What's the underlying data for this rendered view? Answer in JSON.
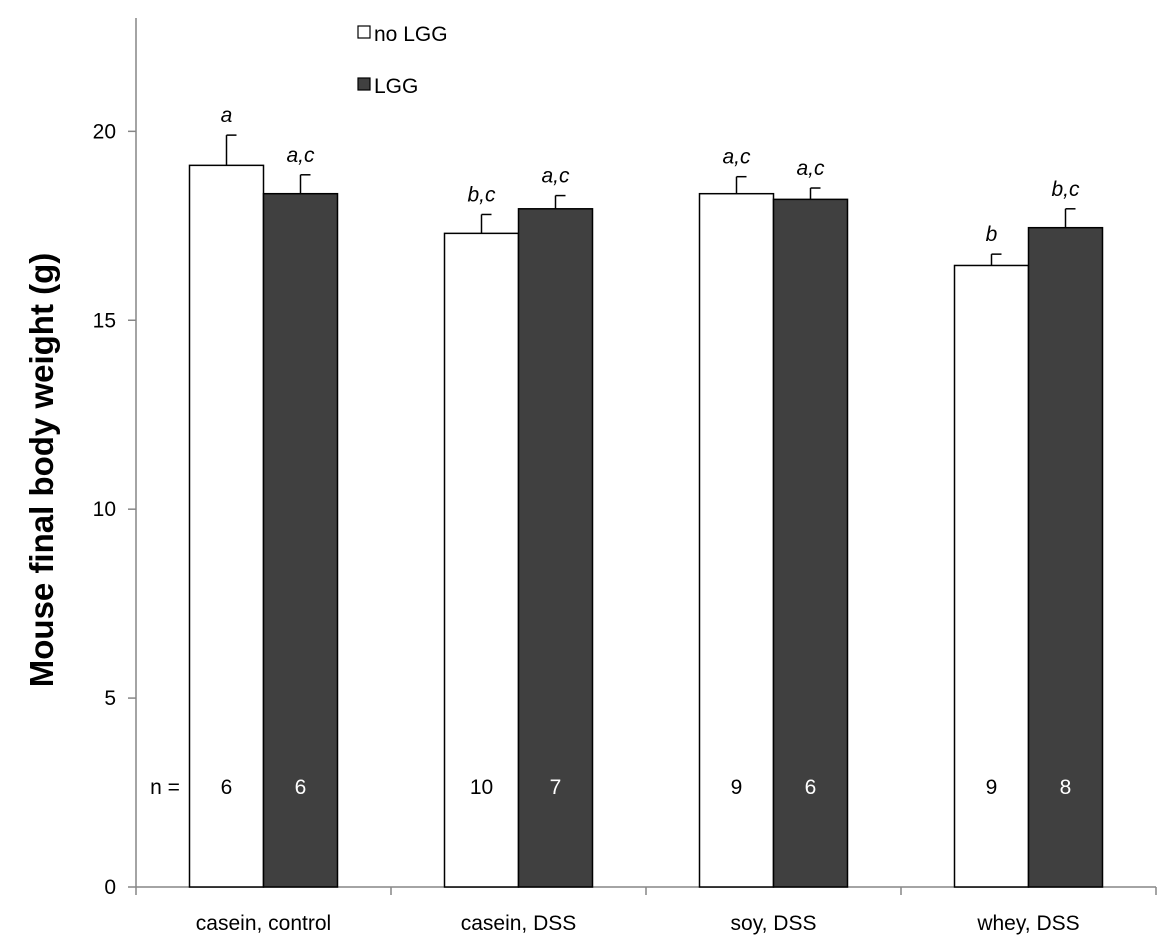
{
  "chart_data": {
    "type": "bar",
    "categories": [
      "casein, control",
      "casein, DSS",
      "soy, DSS",
      "whey, DSS"
    ],
    "ylabel": "Mouse final body weight (g)",
    "ylim": [
      0,
      23
    ],
    "yticks": [
      0,
      5,
      10,
      15,
      20
    ],
    "series": [
      {
        "name": "no LGG",
        "color": "#ffffff",
        "values": [
          19.1,
          17.3,
          18.35,
          16.45
        ],
        "errors": [
          0.8,
          0.5,
          0.45,
          0.3
        ],
        "significance": [
          "a",
          "b,c",
          "a,c",
          "b"
        ],
        "n": [
          "6",
          "10",
          "9",
          "9"
        ]
      },
      {
        "name": "LGG",
        "color": "#404040",
        "values": [
          18.35,
          17.95,
          18.2,
          17.45
        ],
        "errors": [
          0.5,
          0.35,
          0.3,
          0.5
        ],
        "significance": [
          "a,c",
          "a,c",
          "a,c",
          "b,c"
        ],
        "n": [
          "6",
          "7",
          "6",
          "8"
        ]
      }
    ],
    "n_prefix": "n =",
    "legend_position": "top-left"
  }
}
